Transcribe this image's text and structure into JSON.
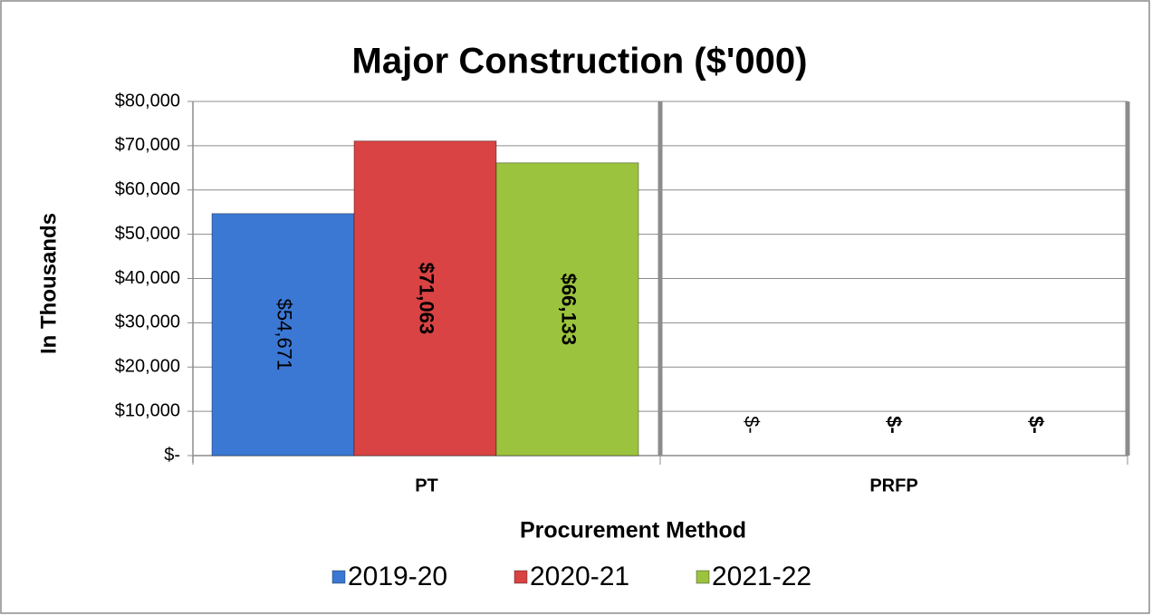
{
  "chart_data": {
    "type": "bar",
    "title": "Major Construction ($'000)",
    "x_label": "Procurement Method",
    "y_label": "In Thousands",
    "categories": [
      "PT",
      "PRFP"
    ],
    "series": [
      {
        "name": "2019-20",
        "color": "#3b78d4",
        "values": [
          54671,
          0
        ],
        "value_labels": [
          "$54,671",
          "$-"
        ]
      },
      {
        "name": "2020-21",
        "color": "#d94343",
        "values": [
          71063,
          0
        ],
        "value_labels": [
          "$71,063",
          "$-"
        ]
      },
      {
        "name": "2021-22",
        "color": "#9cc33e",
        "values": [
          66133,
          0
        ],
        "value_labels": [
          "$66,133",
          "$-"
        ]
      }
    ],
    "ylim": [
      0,
      80000
    ],
    "yticks": [
      {
        "value": 0,
        "label": "$-"
      },
      {
        "value": 10000,
        "label": "$10,000"
      },
      {
        "value": 20000,
        "label": "$20,000"
      },
      {
        "value": 30000,
        "label": "$30,000"
      },
      {
        "value": 40000,
        "label": "$40,000"
      },
      {
        "value": 50000,
        "label": "$50,000"
      },
      {
        "value": 60000,
        "label": "$60,000"
      },
      {
        "value": 70000,
        "label": "$70,000"
      },
      {
        "value": 80000,
        "label": "$80,000"
      }
    ],
    "grid": true,
    "legend": "bottom"
  }
}
